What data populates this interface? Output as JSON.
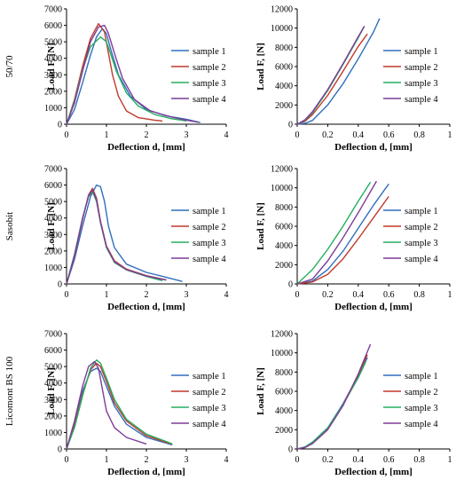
{
  "row_labels": [
    "50/70",
    "Sasobit",
    "Licomont BS 100"
  ],
  "colors": {
    "sample_1": "#2f6fbd",
    "sample_2": "#c0392b",
    "sample_3": "#27ae60",
    "sample_4": "#7d3c98"
  },
  "chart_data": [
    {
      "type": "line",
      "row": "50/70",
      "panel": "left",
      "xlabel": "Deflection d, [mm]",
      "ylabel": "Load F, [N]",
      "xlim": [
        0,
        4
      ],
      "ylim": [
        0,
        7000
      ],
      "xticks": [
        "0",
        "1",
        "2",
        "3",
        "4"
      ],
      "yticks": [
        "0",
        "1000",
        "2000",
        "3000",
        "4000",
        "5000",
        "6000",
        "7000"
      ],
      "series": [
        {
          "name": "sample 1",
          "x": [
            0,
            0.2,
            0.4,
            0.6,
            0.75,
            0.9,
            1.0,
            1.1,
            1.3,
            1.6,
            2.0,
            2.5,
            3.0,
            3.35
          ],
          "y": [
            0,
            900,
            2500,
            4200,
            5300,
            5800,
            5500,
            4600,
            3000,
            1700,
            900,
            500,
            300,
            100
          ]
        },
        {
          "name": "sample 2",
          "x": [
            0,
            0.2,
            0.4,
            0.6,
            0.8,
            0.95,
            1.05,
            1.15,
            1.3,
            1.5,
            1.8,
            2.2,
            2.4
          ],
          "y": [
            0,
            1500,
            3500,
            5200,
            6100,
            5600,
            4300,
            3000,
            1700,
            800,
            400,
            250,
            200
          ]
        },
        {
          "name": "sample 3",
          "x": [
            0,
            0.2,
            0.4,
            0.6,
            0.85,
            1.0,
            1.1,
            1.25,
            1.5,
            1.8,
            2.2,
            2.6,
            3.0
          ],
          "y": [
            0,
            1400,
            3300,
            4700,
            5300,
            5000,
            4300,
            3200,
            1900,
            1100,
            600,
            350,
            200
          ]
        },
        {
          "name": "sample 4",
          "x": [
            0,
            0.2,
            0.4,
            0.6,
            0.8,
            0.95,
            1.05,
            1.2,
            1.4,
            1.7,
            2.1,
            2.6,
            3.0,
            3.3
          ],
          "y": [
            0,
            1300,
            3200,
            5000,
            5900,
            6000,
            5500,
            4300,
            2800,
            1500,
            800,
            450,
            250,
            120
          ]
        }
      ],
      "legend": "right"
    },
    {
      "type": "line",
      "row": "50/70",
      "panel": "right",
      "xlabel": "Deflection d, [mm]",
      "ylabel": "Load F, [N]",
      "xlim": [
        0,
        1
      ],
      "ylim": [
        0,
        12000
      ],
      "xticks": [
        "0",
        "0.2",
        "0.4",
        "0.6",
        "0.8",
        "1"
      ],
      "yticks": [
        "0",
        "2000",
        "4000",
        "6000",
        "8000",
        "10000",
        "12000"
      ],
      "series": [
        {
          "name": "sample 1",
          "x": [
            0,
            0.05,
            0.1,
            0.2,
            0.3,
            0.4,
            0.5,
            0.54
          ],
          "y": [
            0,
            80,
            400,
            2000,
            4200,
            6800,
            9600,
            11000
          ]
        },
        {
          "name": "sample 2",
          "x": [
            0,
            0.05,
            0.1,
            0.2,
            0.3,
            0.4,
            0.46
          ],
          "y": [
            0,
            300,
            1000,
            3000,
            5500,
            8100,
            9400
          ]
        },
        {
          "name": "sample 3",
          "x": [
            0,
            0.05,
            0.1,
            0.2,
            0.3,
            0.4,
            0.44
          ],
          "y": [
            0,
            400,
            1200,
            3500,
            6200,
            9000,
            10200
          ]
        },
        {
          "name": "sample 4",
          "x": [
            0,
            0.05,
            0.1,
            0.2,
            0.3,
            0.4,
            0.44
          ],
          "y": [
            0,
            450,
            1300,
            3600,
            6300,
            9100,
            10200
          ]
        }
      ],
      "legend": "right"
    },
    {
      "type": "line",
      "row": "Sasobit",
      "panel": "left",
      "xlabel": "Deflection d, [mm]",
      "ylabel": "Load F, [N]",
      "xlim": [
        0,
        4
      ],
      "ylim": [
        0,
        7000
      ],
      "xticks": [
        "0",
        "1",
        "2",
        "3",
        "4"
      ],
      "yticks": [
        "0",
        "1000",
        "2000",
        "3000",
        "4000",
        "5000",
        "6000",
        "7000"
      ],
      "series": [
        {
          "name": "sample 1",
          "x": [
            0,
            0.2,
            0.4,
            0.6,
            0.75,
            0.85,
            0.95,
            1.05,
            1.2,
            1.5,
            2.0,
            2.5,
            2.9
          ],
          "y": [
            0,
            1500,
            3500,
            5300,
            6000,
            5900,
            5000,
            3500,
            2200,
            1200,
            700,
            400,
            150
          ]
        },
        {
          "name": "sample 2",
          "x": [
            0,
            0.2,
            0.4,
            0.55,
            0.65,
            0.75,
            0.85,
            1.0,
            1.2,
            1.5,
            2.0,
            2.5
          ],
          "y": [
            0,
            1700,
            3900,
            5400,
            5800,
            5200,
            3800,
            2300,
            1400,
            900,
            500,
            250
          ]
        },
        {
          "name": "sample 3",
          "x": [
            0,
            0.2,
            0.4,
            0.55,
            0.65,
            0.75,
            0.85,
            1.0,
            1.2,
            1.5,
            2.0,
            2.4
          ],
          "y": [
            0,
            1800,
            4000,
            5300,
            5600,
            5000,
            3700,
            2200,
            1300,
            850,
            450,
            200
          ]
        },
        {
          "name": "sample 4",
          "x": [
            0,
            0.2,
            0.4,
            0.55,
            0.65,
            0.75,
            0.85,
            1.0,
            1.2,
            1.5,
            2.0,
            2.5
          ],
          "y": [
            0,
            1750,
            3950,
            5350,
            5700,
            5100,
            3750,
            2250,
            1350,
            870,
            480,
            230
          ]
        }
      ],
      "legend": "right"
    },
    {
      "type": "line",
      "row": "Sasobit",
      "panel": "right",
      "xlabel": "Deflection d, [mm]",
      "ylabel": "Load F, [N]",
      "xlim": [
        0,
        1
      ],
      "ylim": [
        0,
        12000
      ],
      "xticks": [
        "0",
        "0.2",
        "0.4",
        "0.6",
        "0.8",
        "1"
      ],
      "yticks": [
        "0",
        "2000",
        "4000",
        "6000",
        "8000",
        "10000",
        "12000"
      ],
      "series": [
        {
          "name": "sample 1",
          "x": [
            0,
            0.1,
            0.2,
            0.3,
            0.4,
            0.5,
            0.6
          ],
          "y": [
            0,
            300,
            1500,
            3400,
            5800,
            8200,
            10400
          ]
        },
        {
          "name": "sample 2",
          "x": [
            0,
            0.1,
            0.2,
            0.3,
            0.4,
            0.5,
            0.6
          ],
          "y": [
            0,
            200,
            1000,
            2600,
            4700,
            6900,
            9100
          ]
        },
        {
          "name": "sample 3",
          "x": [
            0,
            0.1,
            0.2,
            0.3,
            0.4,
            0.48
          ],
          "y": [
            0,
            1500,
            3600,
            6000,
            8600,
            10600
          ]
        },
        {
          "name": "sample 4",
          "x": [
            0,
            0.1,
            0.2,
            0.3,
            0.4,
            0.52
          ],
          "y": [
            0,
            500,
            2400,
            4800,
            7400,
            10700
          ]
        }
      ],
      "legend": "right"
    },
    {
      "type": "line",
      "row": "Licomont BS 100",
      "panel": "left",
      "xlabel": "Deflection d, [mm]",
      "ylabel": "Load F, [N]",
      "xlim": [
        0,
        4
      ],
      "ylim": [
        0,
        7000
      ],
      "xticks": [
        "0",
        "1",
        "2",
        "3",
        "4"
      ],
      "yticks": [
        "0",
        "1000",
        "2000",
        "3000",
        "4000",
        "5000",
        "6000",
        "7000"
      ],
      "series": [
        {
          "name": "sample 1",
          "x": [
            0,
            0.2,
            0.4,
            0.6,
            0.75,
            0.85,
            1.0,
            1.2,
            1.5,
            2.0,
            2.5,
            2.65
          ],
          "y": [
            0,
            1500,
            3500,
            4700,
            4900,
            4700,
            3800,
            2600,
            1500,
            700,
            350,
            250
          ]
        },
        {
          "name": "sample 2",
          "x": [
            0,
            0.2,
            0.4,
            0.6,
            0.75,
            0.85,
            1.0,
            1.2,
            1.5,
            2.0,
            2.5,
            2.6
          ],
          "y": [
            0,
            1400,
            3300,
            4800,
            5200,
            5000,
            4100,
            2800,
            1700,
            800,
            400,
            300
          ]
        },
        {
          "name": "sample 3",
          "x": [
            0,
            0.2,
            0.4,
            0.6,
            0.75,
            0.85,
            1.0,
            1.2,
            1.5,
            2.0,
            2.5,
            2.65
          ],
          "y": [
            0,
            1300,
            3200,
            4900,
            5400,
            5200,
            4300,
            3000,
            1800,
            900,
            450,
            300
          ]
        },
        {
          "name": "sample 4",
          "x": [
            0,
            0.2,
            0.4,
            0.55,
            0.7,
            0.8,
            0.9,
            1.0,
            1.2,
            1.5,
            2.0
          ],
          "y": [
            0,
            1700,
            3800,
            5000,
            5300,
            4900,
            3600,
            2300,
            1300,
            700,
            300
          ]
        }
      ],
      "legend": "right"
    },
    {
      "type": "line",
      "row": "Licomont BS 100",
      "panel": "right",
      "xlabel": "Deflection d, [mm]",
      "ylabel": "Load F, [N]",
      "xlim": [
        0,
        1
      ],
      "ylim": [
        0,
        12000
      ],
      "xticks": [
        "0",
        "0.2",
        "0.4",
        "0.6",
        "0.8",
        "1"
      ],
      "yticks": [
        "0",
        "2000",
        "4000",
        "6000",
        "8000",
        "10000",
        "12000"
      ],
      "series": [
        {
          "name": "sample 1",
          "x": [
            0,
            0.05,
            0.1,
            0.2,
            0.3,
            0.4,
            0.46
          ],
          "y": [
            0,
            200,
            700,
            2200,
            4700,
            7600,
            9500
          ]
        },
        {
          "name": "sample 2",
          "x": [
            0,
            0.05,
            0.1,
            0.2,
            0.3,
            0.4,
            0.46
          ],
          "y": [
            0,
            150,
            600,
            2100,
            4600,
            7700,
            9800
          ]
        },
        {
          "name": "sample 3",
          "x": [
            0,
            0.05,
            0.1,
            0.2,
            0.3,
            0.4,
            0.45
          ],
          "y": [
            0,
            200,
            700,
            2200,
            4600,
            7400,
            9100
          ]
        },
        {
          "name": "sample 4",
          "x": [
            0,
            0.05,
            0.1,
            0.2,
            0.3,
            0.4,
            0.48
          ],
          "y": [
            0,
            150,
            550,
            2000,
            4500,
            7800,
            10900
          ]
        }
      ],
      "legend": "right"
    }
  ]
}
